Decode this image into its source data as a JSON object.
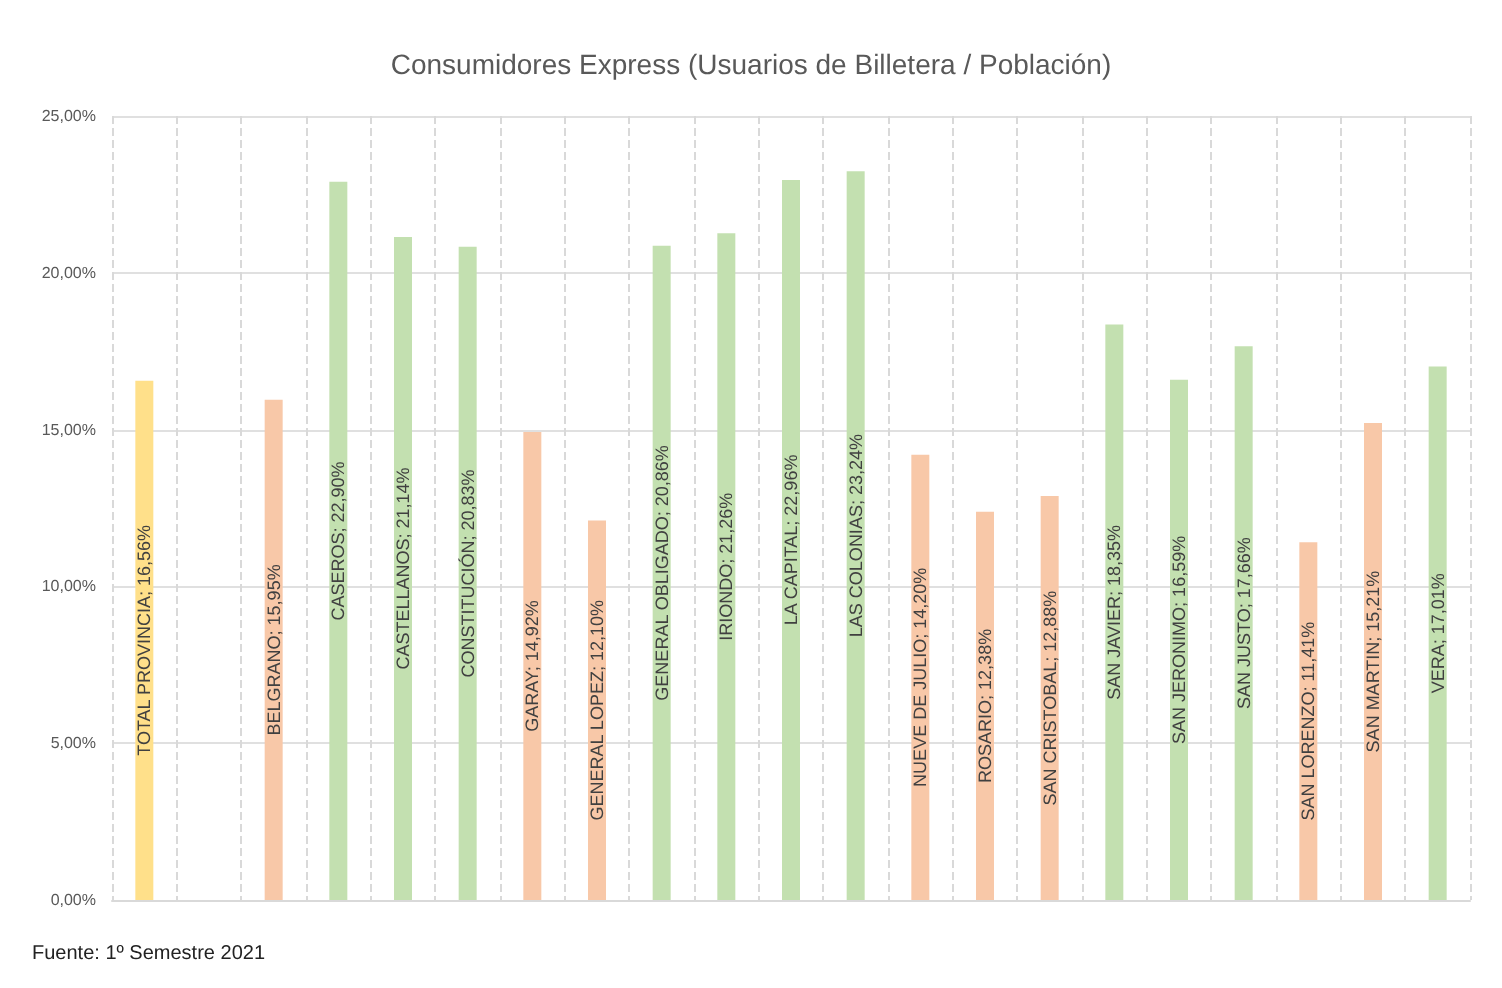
{
  "chart_data": {
    "type": "bar",
    "title": "Consumidores Express (Usuarios de Billetera / Población)",
    "categories": [
      null,
      null,
      null,
      null,
      null,
      null,
      null,
      null,
      null,
      null,
      null,
      null,
      null,
      null,
      null,
      null,
      null,
      null,
      null,
      null,
      null
    ],
    "values": [
      16.56,
      null,
      15.95,
      22.9,
      21.14,
      20.83,
      14.92,
      12.1,
      20.86,
      21.26,
      22.96,
      23.24,
      14.2,
      12.38,
      12.88,
      18.35,
      16.59,
      17.66,
      11.41,
      15.21,
      17.01
    ],
    "value_labels": [
      "TOTAL PROVINCIA; 16,56%",
      null,
      "BELGRANO; 15,95%",
      "CASEROS; 22,90%",
      "CASTELLANOS; 21,14%",
      "CONSTITUCIÓN; 20,83%",
      "GARAY; 14,92%",
      "GENERAL LOPEZ; 12,10%",
      "GENERAL OBLIGADO; 20,86%",
      "IRIONDO; 21,26%",
      "LA CAPITAL; 22,96%",
      "LAS COLONIAS; 23,24%",
      "NUEVE DE JULIO; 14,20%",
      "ROSARIO; 12,38%",
      "SAN CRISTOBAL; 12,88%",
      "SAN JAVIER; 18,35%",
      "SAN JERONIMO; 16,59%",
      "SAN JUSTO; 17,66%",
      "SAN LORENZO; 11,41%",
      "SAN MARTIN; 15,21%",
      "VERA; 17,01%"
    ],
    "colors": [
      "#ffe08a",
      null,
      "#f8c8a8",
      "#c3e0b0",
      "#c3e0b0",
      "#c3e0b0",
      "#f8c8a8",
      "#f8c8a8",
      "#c3e0b0",
      "#c3e0b0",
      "#c3e0b0",
      "#c3e0b0",
      "#f8c8a8",
      "#f8c8a8",
      "#f8c8a8",
      "#c3e0b0",
      "#c3e0b0",
      "#c3e0b0",
      "#f8c8a8",
      "#f8c8a8",
      "#c3e0b0"
    ],
    "ylim": [
      0,
      25
    ],
    "yticks": [
      {
        "value": 0,
        "label": "0,00%"
      },
      {
        "value": 5,
        "label": "5,00%"
      },
      {
        "value": 10,
        "label": "10,00%"
      },
      {
        "value": 15,
        "label": "15,00%"
      },
      {
        "value": 20,
        "label": "20,00%"
      },
      {
        "value": 25,
        "label": "25,00%"
      }
    ],
    "grid": true,
    "annotations": [
      "Fuente: 1º Semestre 2021"
    ]
  }
}
